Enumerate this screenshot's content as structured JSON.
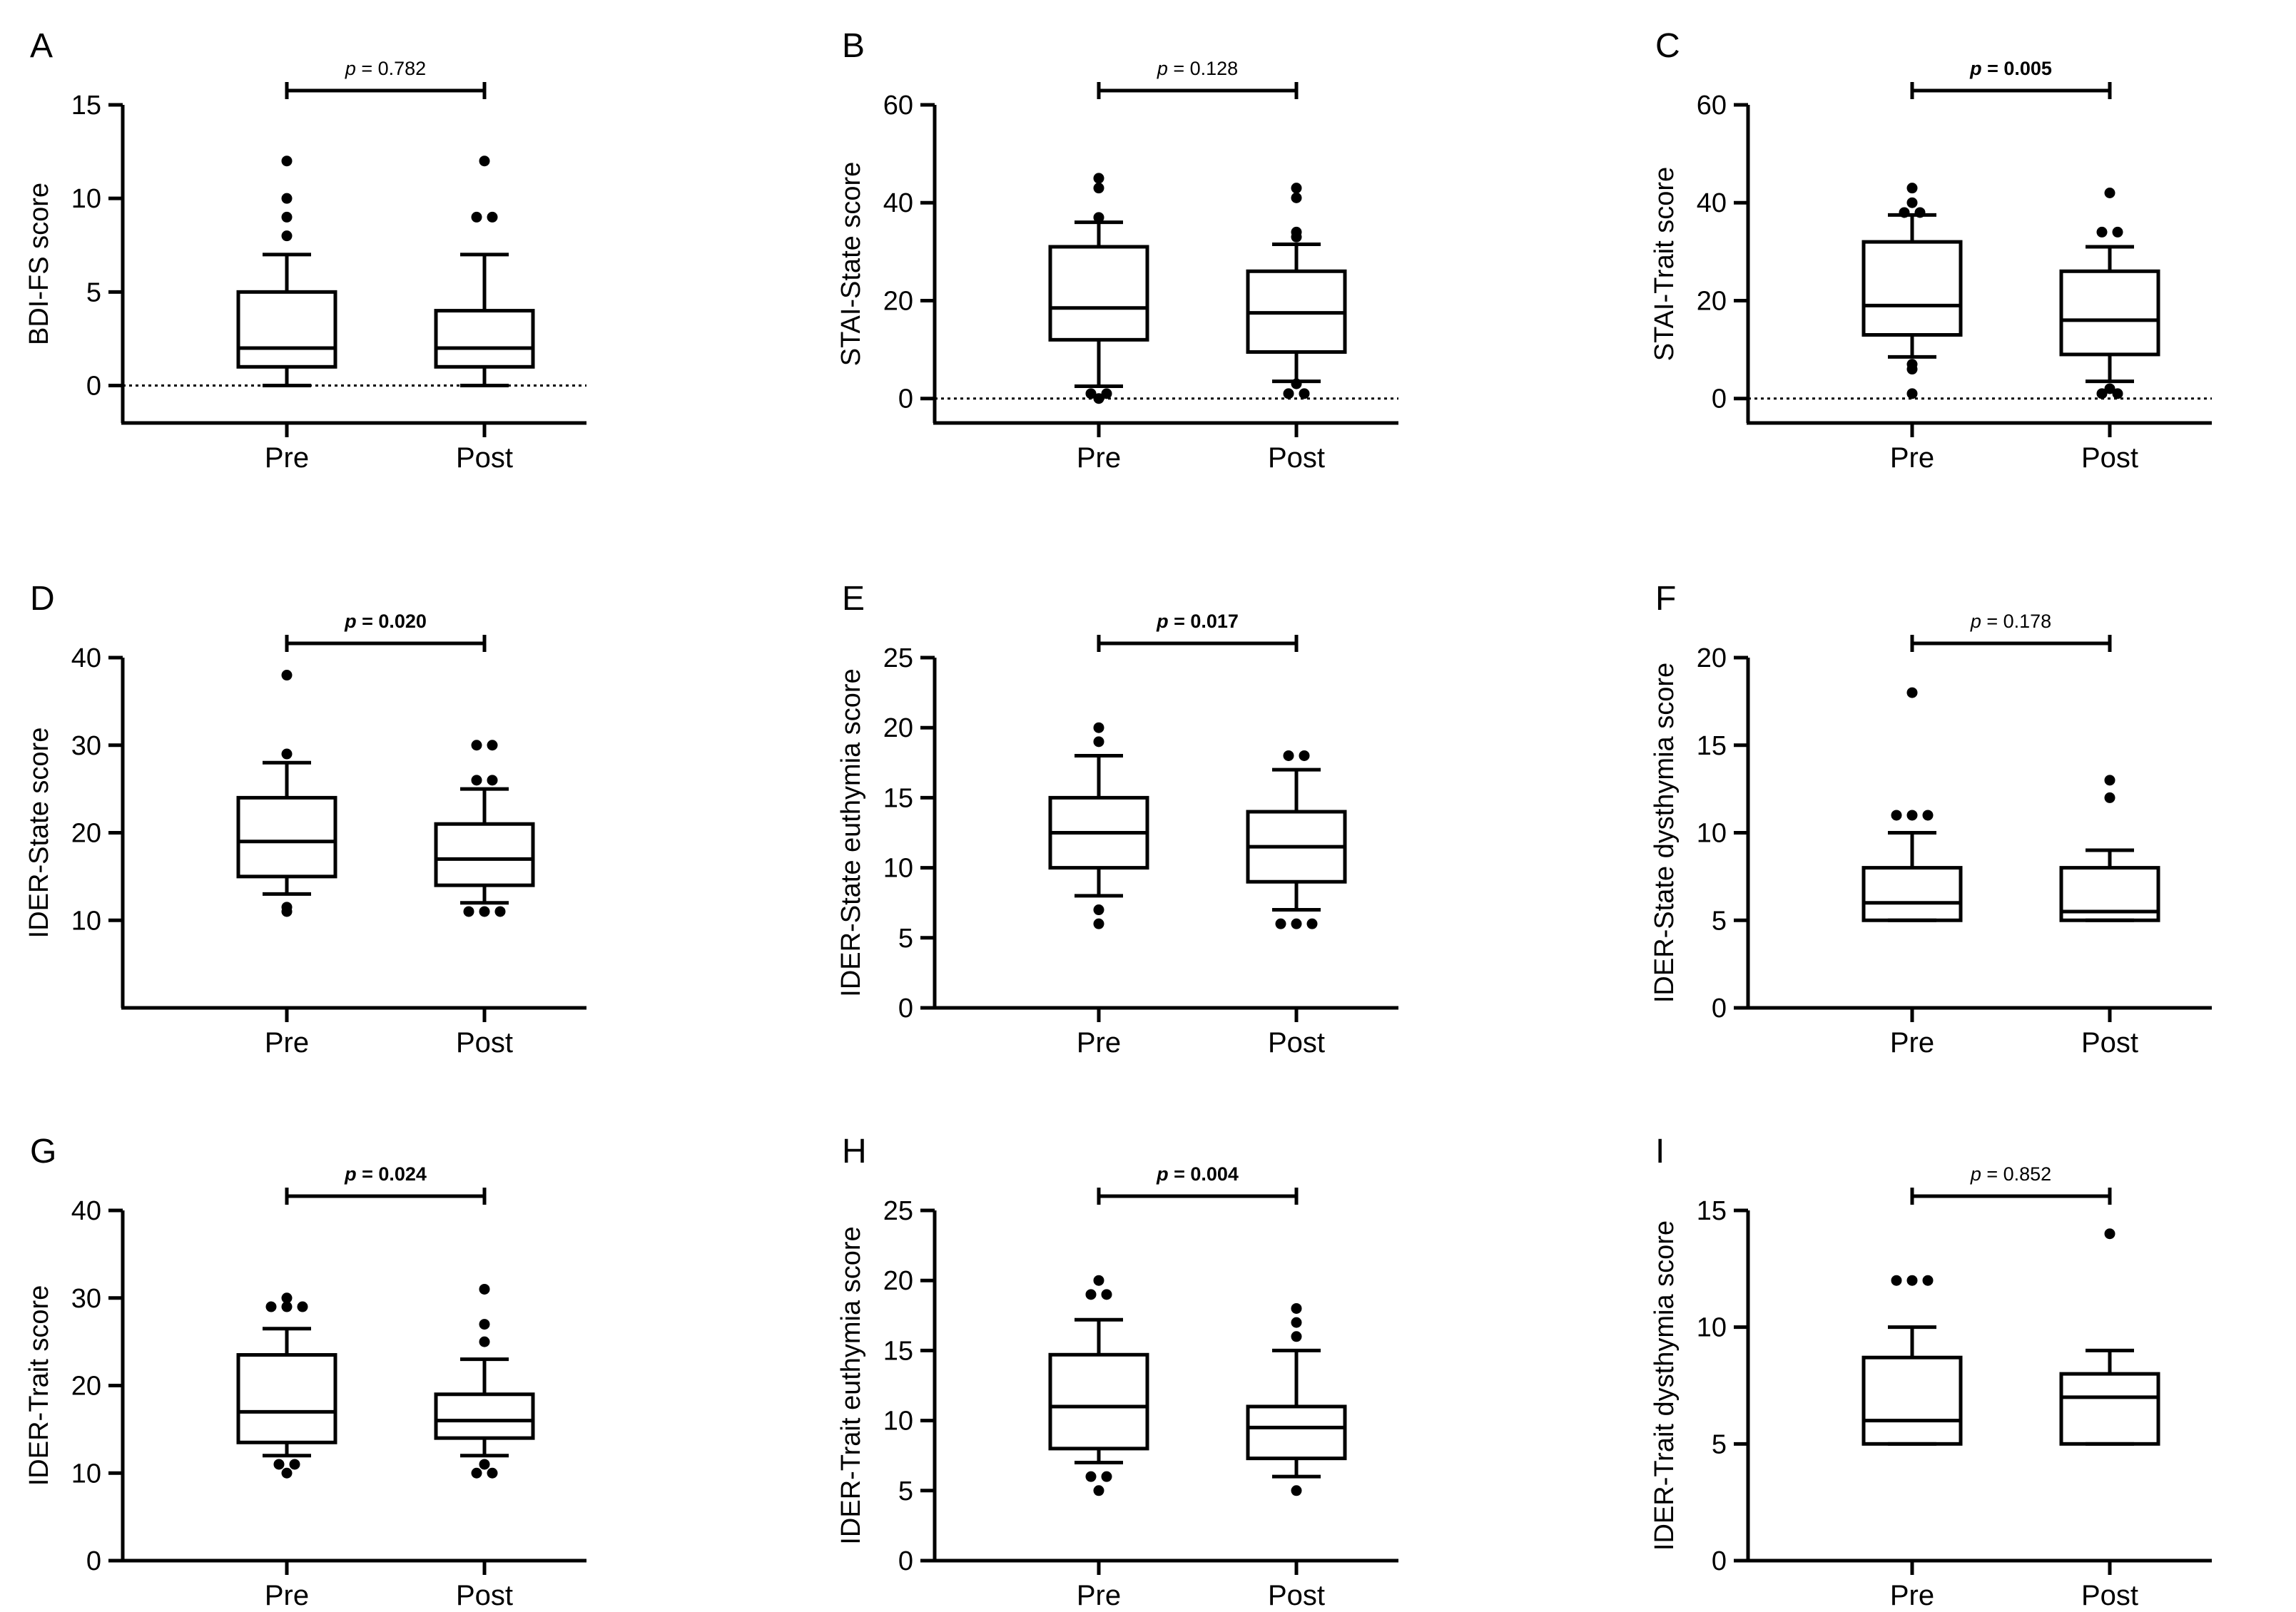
{
  "chart_data": [
    {
      "panel": "A",
      "type": "box",
      "ylabel": "BDI-FS score",
      "categories": [
        "Pre",
        "Post"
      ],
      "yticks": [
        0,
        5,
        10,
        15
      ],
      "ylim": [
        -2,
        15
      ],
      "zero_line": true,
      "p_label": "p",
      "p_value": "= 0.782",
      "p_bold": false,
      "boxes": [
        {
          "category": "Pre",
          "whisker_low": 0,
          "q1": 1,
          "median": 2,
          "q3": 5,
          "whisker_high": 7,
          "outliers": [
            8,
            9,
            10,
            12
          ]
        },
        {
          "category": "Post",
          "whisker_low": 0,
          "q1": 1,
          "median": 2,
          "q3": 4,
          "whisker_high": 7,
          "outliers": [
            9,
            9,
            12
          ]
        }
      ]
    },
    {
      "panel": "B",
      "type": "box",
      "ylabel": "STAI-State score",
      "categories": [
        "Pre",
        "Post"
      ],
      "yticks": [
        0,
        20,
        40,
        60
      ],
      "ylim": [
        -5,
        60
      ],
      "zero_line": true,
      "p_label": "p",
      "p_value": "= 0.128",
      "p_bold": false,
      "boxes": [
        {
          "category": "Pre",
          "whisker_low": 2.5,
          "q1": 12,
          "median": 18.5,
          "q3": 31,
          "whisker_high": 36,
          "outliers": [
            0,
            1,
            1,
            37,
            43,
            45
          ]
        },
        {
          "category": "Post",
          "whisker_low": 3.5,
          "q1": 9.5,
          "median": 17.5,
          "q3": 26,
          "whisker_high": 31.5,
          "outliers": [
            1,
            1,
            3,
            33,
            34,
            41,
            43
          ]
        }
      ]
    },
    {
      "panel": "C",
      "type": "box",
      "ylabel": "STAI-Trait score",
      "categories": [
        "Pre",
        "Post"
      ],
      "yticks": [
        0,
        20,
        40,
        60
      ],
      "ylim": [
        -5,
        60
      ],
      "zero_line": true,
      "p_label": "p",
      "p_value": "= 0.005",
      "p_bold": true,
      "boxes": [
        {
          "category": "Pre",
          "whisker_low": 8.5,
          "q1": 13,
          "median": 19,
          "q3": 32,
          "whisker_high": 37.5,
          "outliers": [
            1,
            6,
            7,
            38,
            38,
            40,
            43
          ]
        },
        {
          "category": "Post",
          "whisker_low": 3.5,
          "q1": 9,
          "median": 16,
          "q3": 26,
          "whisker_high": 31,
          "outliers": [
            1,
            1,
            2,
            34,
            34,
            42
          ]
        }
      ]
    },
    {
      "panel": "D",
      "type": "box",
      "ylabel": "IDER-State score",
      "categories": [
        "Pre",
        "Post"
      ],
      "yticks": [
        10,
        20,
        30,
        40
      ],
      "ylim": [
        0,
        40
      ],
      "zero_line": false,
      "p_label": "p",
      "p_value": "= 0.020",
      "p_bold": true,
      "boxes": [
        {
          "category": "Pre",
          "whisker_low": 13,
          "q1": 15,
          "median": 19,
          "q3": 24,
          "whisker_high": 28,
          "outliers": [
            11,
            11.5,
            29,
            38
          ]
        },
        {
          "category": "Post",
          "whisker_low": 12,
          "q1": 14,
          "median": 17,
          "q3": 21,
          "whisker_high": 25,
          "outliers": [
            11,
            11,
            11,
            26,
            26,
            30,
            30
          ]
        }
      ]
    },
    {
      "panel": "E",
      "type": "box",
      "ylabel": "IDER-State euthymia score",
      "categories": [
        "Pre",
        "Post"
      ],
      "yticks": [
        0,
        5,
        10,
        15,
        20,
        25
      ],
      "ylim": [
        0,
        25
      ],
      "zero_line": false,
      "p_label": "p",
      "p_value": "= 0.017",
      "p_bold": true,
      "boxes": [
        {
          "category": "Pre",
          "whisker_low": 8,
          "q1": 10,
          "median": 12.5,
          "q3": 15,
          "whisker_high": 18,
          "outliers": [
            6,
            7,
            19,
            20
          ]
        },
        {
          "category": "Post",
          "whisker_low": 7,
          "q1": 9,
          "median": 11.5,
          "q3": 14,
          "whisker_high": 17,
          "outliers": [
            6,
            6,
            6,
            18,
            18
          ]
        }
      ]
    },
    {
      "panel": "F",
      "type": "box",
      "ylabel": "IDER-State dysthymia score",
      "categories": [
        "Pre",
        "Post"
      ],
      "yticks": [
        0,
        5,
        10,
        15,
        20
      ],
      "ylim": [
        0,
        20
      ],
      "zero_line": false,
      "p_label": "p",
      "p_value": "= 0.178",
      "p_bold": false,
      "boxes": [
        {
          "category": "Pre",
          "whisker_low": 5,
          "q1": 5,
          "median": 6,
          "q3": 8,
          "whisker_high": 10,
          "outliers": [
            11,
            11,
            11,
            18
          ]
        },
        {
          "category": "Post",
          "whisker_low": 5,
          "q1": 5,
          "median": 5.5,
          "q3": 8,
          "whisker_high": 9,
          "outliers": [
            12,
            13
          ]
        }
      ]
    },
    {
      "panel": "G",
      "type": "box",
      "ylabel": "IDER-Trait score",
      "categories": [
        "Pre",
        "Post"
      ],
      "yticks": [
        0,
        10,
        20,
        30,
        40
      ],
      "ylim": [
        0,
        40
      ],
      "zero_line": false,
      "p_label": "p",
      "p_value": "= 0.024",
      "p_bold": true,
      "boxes": [
        {
          "category": "Pre",
          "whisker_low": 12,
          "q1": 13.5,
          "median": 17,
          "q3": 23.5,
          "whisker_high": 26.5,
          "outliers": [
            10,
            11,
            11,
            29,
            29,
            29,
            30
          ]
        },
        {
          "category": "Post",
          "whisker_low": 12,
          "q1": 14,
          "median": 16,
          "q3": 19,
          "whisker_high": 23,
          "outliers": [
            10,
            10,
            11,
            25,
            27,
            31
          ]
        }
      ]
    },
    {
      "panel": "H",
      "type": "box",
      "ylabel": "IDER-Trait euthymia score",
      "categories": [
        "Pre",
        "Post"
      ],
      "yticks": [
        0,
        5,
        10,
        15,
        20,
        25
      ],
      "ylim": [
        0,
        25
      ],
      "zero_line": false,
      "p_label": "p",
      "p_value": "= 0.004",
      "p_bold": true,
      "boxes": [
        {
          "category": "Pre",
          "whisker_low": 7,
          "q1": 8,
          "median": 11,
          "q3": 14.7,
          "whisker_high": 17.2,
          "outliers": [
            5,
            6,
            6,
            19,
            19,
            20
          ]
        },
        {
          "category": "Post",
          "whisker_low": 6,
          "q1": 7.3,
          "median": 9.5,
          "q3": 11,
          "whisker_high": 15,
          "outliers": [
            5,
            16,
            17,
            18
          ]
        }
      ]
    },
    {
      "panel": "I",
      "type": "box",
      "ylabel": "IDER-Trait dysthymia score",
      "categories": [
        "Pre",
        "Post"
      ],
      "yticks": [
        0,
        5,
        10,
        15
      ],
      "ylim": [
        0,
        15
      ],
      "zero_line": false,
      "p_label": "p",
      "p_value": "= 0.852",
      "p_bold": false,
      "boxes": [
        {
          "category": "Pre",
          "whisker_low": 5,
          "q1": 5,
          "median": 6,
          "q3": 8.7,
          "whisker_high": 10,
          "outliers": [
            12,
            12,
            12
          ]
        },
        {
          "category": "Post",
          "whisker_low": 5,
          "q1": 5,
          "median": 7,
          "q3": 8,
          "whisker_high": 9,
          "outliers": [
            14
          ]
        }
      ]
    }
  ]
}
